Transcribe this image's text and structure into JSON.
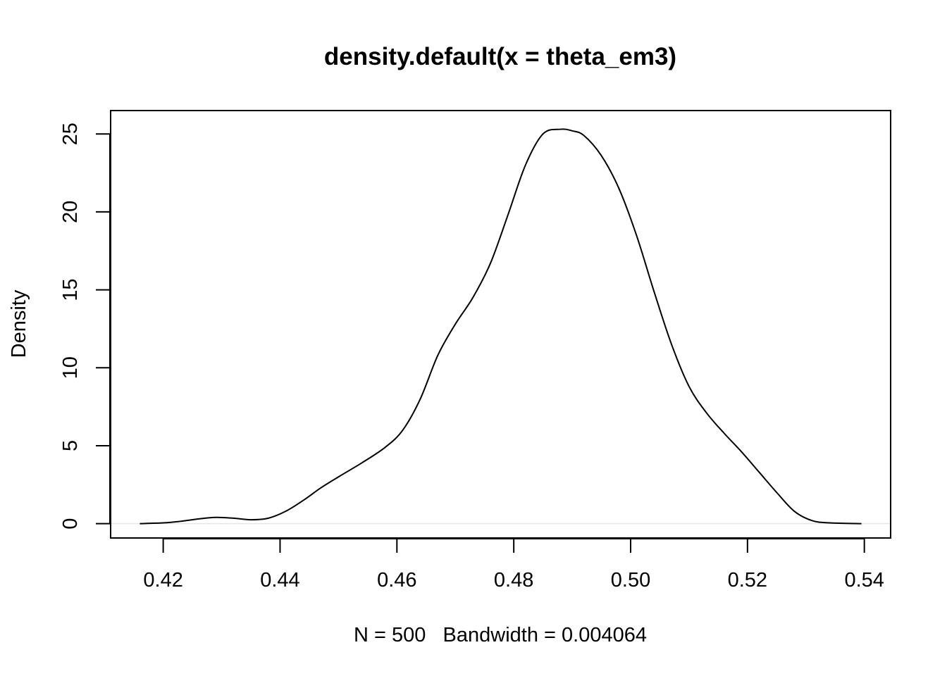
{
  "chart_data": {
    "type": "line",
    "title": "density.default(x = theta_em3)",
    "xlabel": "N = 500   Bandwidth = 0.004064",
    "ylabel": "Density",
    "xlim": [
      0.411,
      0.5445
    ],
    "ylim": [
      -0.92,
      26.5
    ],
    "x_ticks": [
      0.42,
      0.44,
      0.46,
      0.48,
      0.5,
      0.52,
      0.54
    ],
    "x_tick_labels": [
      "0.42",
      "0.44",
      "0.46",
      "0.48",
      "0.50",
      "0.52",
      "0.54"
    ],
    "y_ticks": [
      0,
      5,
      10,
      15,
      20,
      25
    ],
    "y_tick_labels": [
      "0",
      "5",
      "10",
      "15",
      "20",
      "25"
    ],
    "grid": false,
    "legend": "none",
    "baseline": 0,
    "baseline_color": "#e6e6e6",
    "line_color": "#000000",
    "series": [
      {
        "x": [
          0.416,
          0.42,
          0.423,
          0.426,
          0.429,
          0.432,
          0.435,
          0.438,
          0.441,
          0.444,
          0.447,
          0.45,
          0.454,
          0.458,
          0.461,
          0.464,
          0.467,
          0.47,
          0.473,
          0.476,
          0.479,
          0.482,
          0.485,
          0.488,
          0.49,
          0.492,
          0.495,
          0.498,
          0.501,
          0.504,
          0.507,
          0.51,
          0.513,
          0.516,
          0.519,
          0.522,
          0.525,
          0.528,
          0.531,
          0.534,
          0.5395
        ],
        "y": [
          0.0,
          0.05,
          0.15,
          0.3,
          0.4,
          0.35,
          0.25,
          0.35,
          0.8,
          1.5,
          2.3,
          3.0,
          3.9,
          4.9,
          6.0,
          8.0,
          10.8,
          12.8,
          14.5,
          16.7,
          19.8,
          23.0,
          25.0,
          25.3,
          25.2,
          24.9,
          23.6,
          21.5,
          18.5,
          14.9,
          11.5,
          8.8,
          7.1,
          5.8,
          4.6,
          3.3,
          2.0,
          0.8,
          0.2,
          0.05,
          0.0
        ]
      }
    ]
  }
}
